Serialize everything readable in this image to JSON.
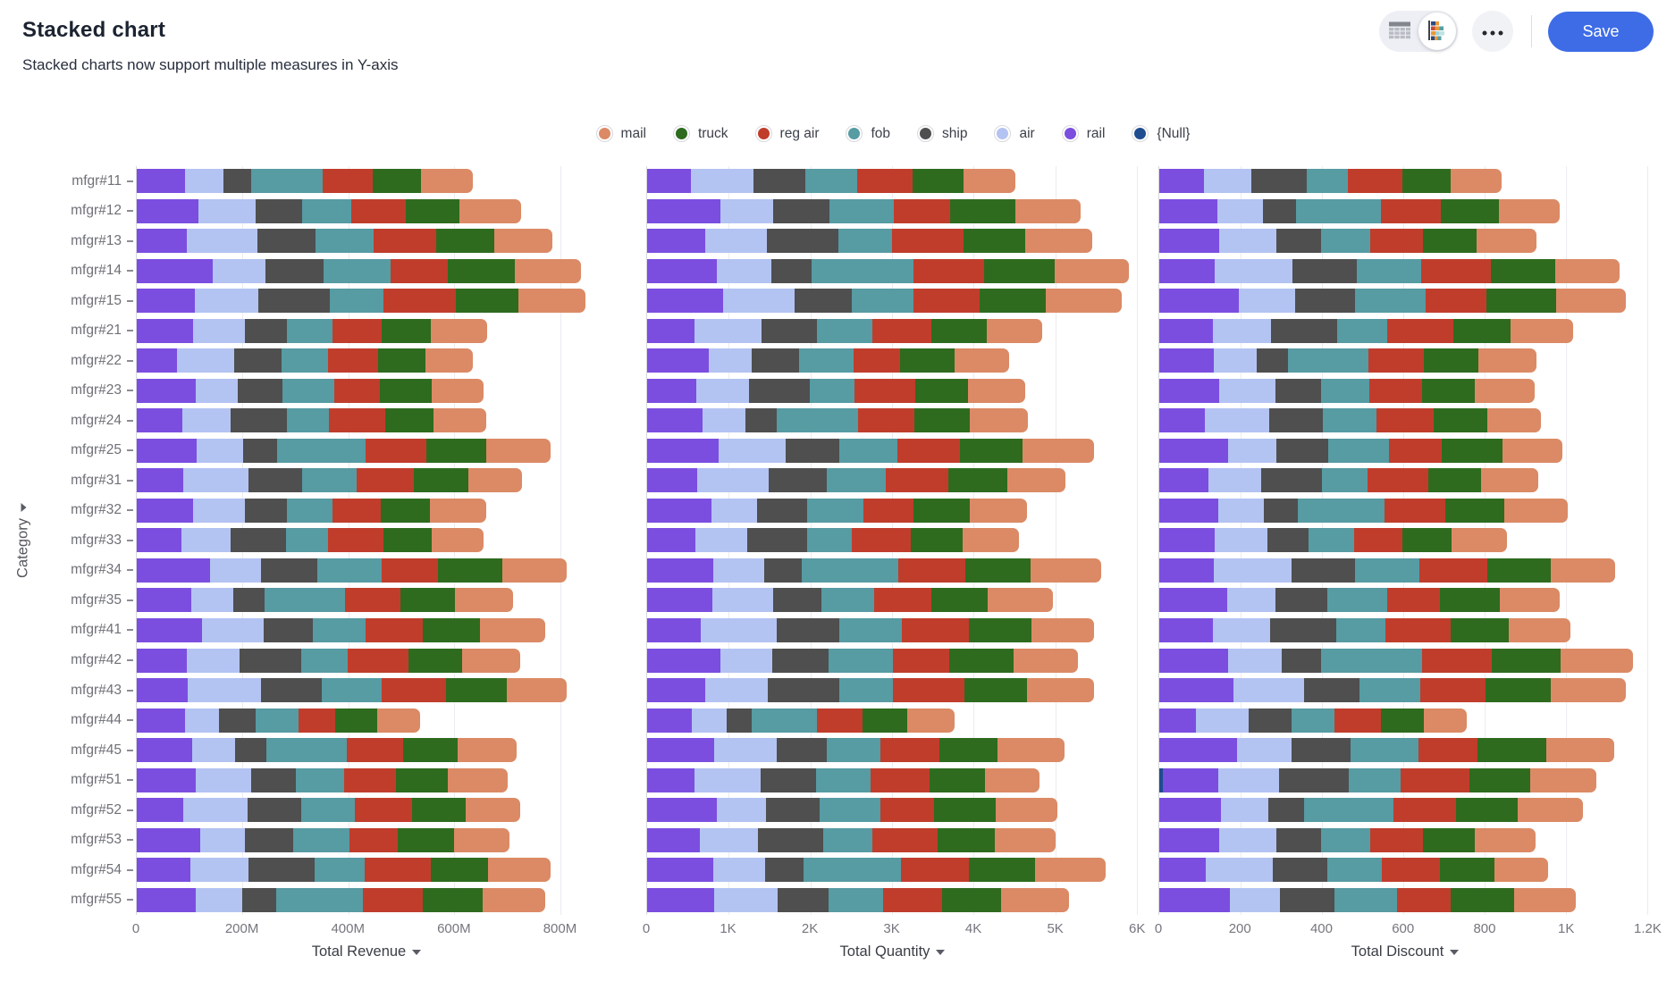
{
  "header": {
    "title": "Stacked chart",
    "subtitle": "Stacked charts now support multiple measures in Y-axis",
    "save_label": "Save"
  },
  "colors": {
    "accent_blue": "#3e6ce6",
    "mail": "#DB8A65",
    "truck": "#2E6B1F",
    "reg_air": "#C03D2C",
    "fob": "#579BA3",
    "ship": "#4F4F4F",
    "air": "#B3C3F2",
    "rail": "#7B4EE0",
    "null": "#1E4C8F"
  },
  "legend": {
    "items": [
      {
        "label": "mail",
        "color": "#DB8A65"
      },
      {
        "label": "truck",
        "color": "#2E6B1F"
      },
      {
        "label": "reg air",
        "color": "#C03D2C"
      },
      {
        "label": "fob",
        "color": "#579BA3"
      },
      {
        "label": "ship",
        "color": "#4F4F4F"
      },
      {
        "label": "air",
        "color": "#B3C3F2"
      },
      {
        "label": "rail",
        "color": "#7B4EE0"
      },
      {
        "label": "{Null}",
        "color": "#1E4C8F"
      }
    ]
  },
  "y_axis": {
    "label": "Category"
  },
  "chart_data": [
    {
      "type": "bar",
      "orientation": "horizontal",
      "stacked": true,
      "title": "Total Revenue",
      "unit": "M",
      "axis_max": 870,
      "grid": true,
      "ticks": [
        {
          "value": 0,
          "label": "0"
        },
        {
          "value": 200,
          "label": "200M"
        },
        {
          "value": 400,
          "label": "400M"
        },
        {
          "value": 600,
          "label": "600M"
        },
        {
          "value": 800,
          "label": "800M"
        }
      ],
      "categories": [
        "mfgr#11",
        "mfgr#12",
        "mfgr#13",
        "mfgr#14",
        "mfgr#15",
        "mfgr#21",
        "mfgr#22",
        "mfgr#23",
        "mfgr#24",
        "mfgr#25",
        "mfgr#31",
        "mfgr#32",
        "mfgr#33",
        "mfgr#34",
        "mfgr#35",
        "mfgr#41",
        "mfgr#42",
        "mfgr#43",
        "mfgr#44",
        "mfgr#45",
        "mfgr#51",
        "mfgr#52",
        "mfgr#53",
        "mfgr#54",
        "mfgr#55"
      ],
      "series": [
        {
          "name": "{Null}",
          "color": "#1E4C8F",
          "values": [
            0,
            0,
            0,
            0,
            0,
            0,
            0,
            0,
            0,
            0,
            0,
            0,
            0,
            0,
            0,
            0,
            0,
            0,
            0,
            0,
            0,
            0,
            0,
            0,
            0
          ]
        },
        {
          "name": "rail",
          "color": "#7B4EE0",
          "values": [
            92,
            116,
            94,
            143,
            110,
            106,
            76,
            112,
            86,
            113,
            87,
            106,
            85,
            138,
            103,
            124,
            94,
            97,
            91,
            104,
            112,
            87,
            120,
            102,
            112
          ]
        },
        {
          "name": "air",
          "color": "#B3C3F2",
          "values": [
            72,
            109,
            134,
            101,
            119,
            99,
            108,
            79,
            92,
            88,
            124,
            99,
            92,
            97,
            80,
            116,
            101,
            138,
            64,
            81,
            105,
            123,
            84,
            109,
            87
          ]
        },
        {
          "name": "ship",
          "color": "#4F4F4F",
          "values": [
            53,
            87,
            110,
            109,
            136,
            79,
            89,
            85,
            106,
            65,
            102,
            79,
            105,
            106,
            59,
            93,
            116,
            114,
            70,
            60,
            84,
            101,
            92,
            125,
            64
          ]
        },
        {
          "name": "fob",
          "color": "#579BA3",
          "values": [
            135,
            94,
            110,
            126,
            102,
            86,
            89,
            98,
            79,
            166,
            102,
            86,
            79,
            122,
            151,
            100,
            87,
            114,
            80,
            152,
            91,
            101,
            106,
            94,
            164
          ]
        },
        {
          "name": "reg air",
          "color": "#C03D2C",
          "values": [
            94,
            102,
            118,
            109,
            136,
            93,
            95,
            85,
            106,
            116,
            109,
            92,
            105,
            106,
            105,
            108,
            116,
            122,
            70,
            106,
            98,
            109,
            92,
            125,
            114
          ]
        },
        {
          "name": "truck",
          "color": "#2E6B1F",
          "values": [
            92,
            102,
            110,
            126,
            119,
            93,
            89,
            98,
            92,
            113,
            102,
            92,
            92,
            122,
            103,
            108,
            101,
            114,
            80,
            104,
            98,
            101,
            106,
            109,
            112
          ]
        },
        {
          "name": "mail",
          "color": "#DB8A65",
          "values": [
            98,
            116,
            110,
            126,
            126,
            106,
            90,
            99,
            99,
            121,
            102,
            106,
            98,
            121,
            111,
            123,
            109,
            113,
            81,
            111,
            114,
            102,
            104,
            118,
            119
          ]
        }
      ]
    },
    {
      "type": "bar",
      "orientation": "horizontal",
      "stacked": true,
      "title": "Total Quantity",
      "unit": "",
      "axis_max": 6020,
      "grid": true,
      "ticks": [
        {
          "value": 0,
          "label": "0"
        },
        {
          "value": 1000,
          "label": "1K"
        },
        {
          "value": 2000,
          "label": "2K"
        },
        {
          "value": 3000,
          "label": "3K"
        },
        {
          "value": 4000,
          "label": "4K"
        },
        {
          "value": 5000,
          "label": "5K"
        },
        {
          "value": 6000,
          "label": "6K"
        }
      ],
      "categories": [
        "mfgr#11",
        "mfgr#12",
        "mfgr#13",
        "mfgr#14",
        "mfgr#15",
        "mfgr#21",
        "mfgr#22",
        "mfgr#23",
        "mfgr#24",
        "mfgr#25",
        "mfgr#31",
        "mfgr#32",
        "mfgr#33",
        "mfgr#34",
        "mfgr#35",
        "mfgr#41",
        "mfgr#42",
        "mfgr#43",
        "mfgr#44",
        "mfgr#45",
        "mfgr#51",
        "mfgr#52",
        "mfgr#53",
        "mfgr#54",
        "mfgr#55"
      ],
      "series": [
        {
          "name": "{Null}",
          "color": "#1E4C8F",
          "values": [
            0,
            0,
            0,
            0,
            0,
            0,
            0,
            0,
            0,
            0,
            0,
            0,
            0,
            0,
            0,
            0,
            0,
            0,
            0,
            0,
            0,
            0,
            0,
            0,
            0
          ]
        },
        {
          "name": "rail",
          "color": "#7B4EE0",
          "values": [
            541,
            902,
            709,
            855,
            931,
            580,
            753,
            602,
            677,
            876,
            615,
            791,
            591,
            806,
            795,
            657,
            898,
            712,
            546,
            818,
            577,
            853,
            651,
            815,
            826
          ]
        },
        {
          "name": "air",
          "color": "#B3C3F2",
          "values": [
            767,
            637,
            763,
            666,
            873,
            822,
            532,
            648,
            527,
            822,
            871,
            558,
            637,
            628,
            745,
            931,
            634,
            767,
            425,
            767,
            818,
            602,
            701,
            635,
            774
          ]
        },
        {
          "name": "ship",
          "color": "#4F4F4F",
          "values": [
            631,
            690,
            872,
            489,
            698,
            677,
            576,
            740,
            387,
            657,
            717,
            605,
            728,
            461,
            596,
            767,
            687,
            876,
            313,
            613,
            673,
            653,
            801,
            467,
            620
          ]
        },
        {
          "name": "fob",
          "color": "#579BA3",
          "values": [
            631,
            796,
            654,
            1250,
            756,
            677,
            665,
            555,
            989,
            712,
            717,
            698,
            546,
            1178,
            646,
            767,
            792,
            657,
            798,
            664,
            673,
            753,
            601,
            1192,
            671
          ]
        },
        {
          "name": "reg air",
          "color": "#C03D2C",
          "values": [
            677,
            690,
            872,
            872,
            814,
            726,
            576,
            740,
            691,
            767,
            769,
            605,
            728,
            822,
            695,
            822,
            687,
            876,
            557,
            716,
            722,
            653,
            801,
            832,
            723
          ]
        },
        {
          "name": "truck",
          "color": "#2E6B1F",
          "values": [
            631,
            796,
            763,
            855,
            814,
            677,
            665,
            648,
            677,
            767,
            717,
            698,
            637,
            806,
            695,
            767,
            792,
            767,
            546,
            716,
            673,
            753,
            701,
            815,
            723
          ]
        },
        {
          "name": "mail",
          "color": "#DB8A65",
          "values": [
            632,
            796,
            818,
            908,
            931,
            678,
            664,
            694,
            719,
            876,
            718,
            699,
            682,
            855,
            795,
            766,
            791,
            822,
            580,
            817,
            674,
            753,
            751,
            865,
            826
          ]
        }
      ]
    },
    {
      "type": "bar",
      "orientation": "horizontal",
      "stacked": true,
      "title": "Total Discount",
      "unit": "",
      "axis_max": 1210,
      "grid": true,
      "ticks": [
        {
          "value": 0,
          "label": "0"
        },
        {
          "value": 200,
          "label": "200"
        },
        {
          "value": 400,
          "label": "400"
        },
        {
          "value": 600,
          "label": "600"
        },
        {
          "value": 800,
          "label": "800"
        },
        {
          "value": 1000,
          "label": "1K"
        },
        {
          "value": 1200,
          "label": "1.2K"
        }
      ],
      "categories": [
        "mfgr#11",
        "mfgr#12",
        "mfgr#13",
        "mfgr#14",
        "mfgr#15",
        "mfgr#21",
        "mfgr#22",
        "mfgr#23",
        "mfgr#24",
        "mfgr#25",
        "mfgr#31",
        "mfgr#32",
        "mfgr#33",
        "mfgr#34",
        "mfgr#35",
        "mfgr#41",
        "mfgr#42",
        "mfgr#43",
        "mfgr#44",
        "mfgr#45",
        "mfgr#51",
        "mfgr#52",
        "mfgr#53",
        "mfgr#54",
        "mfgr#55"
      ],
      "series": [
        {
          "name": "{Null}",
          "color": "#1E4C8F",
          "values": [
            0,
            0,
            0,
            0,
            0,
            0,
            0,
            0,
            0,
            0,
            0,
            0,
            0,
            0,
            0,
            0,
            0,
            0,
            0,
            0,
            8,
            0,
            0,
            0,
            0
          ]
        },
        {
          "name": "rail",
          "color": "#7B4EE0",
          "values": [
            109,
            143,
            148,
            136,
            195,
            132,
            134,
            148,
            112,
            168,
            121,
            145,
            137,
            134,
            167,
            131,
            169,
            183,
            91,
            190,
            138,
            151,
            148,
            115,
            174
          ]
        },
        {
          "name": "air",
          "color": "#B3C3F2",
          "values": [
            118,
            111,
            139,
            192,
            138,
            142,
            105,
            138,
            159,
            119,
            130,
            113,
            128,
            190,
            118,
            141,
            132,
            172,
            128,
            134,
            149,
            118,
            139,
            163,
            123
          ]
        },
        {
          "name": "ship",
          "color": "#4F4F4F",
          "values": [
            135,
            82,
            111,
            158,
            149,
            163,
            77,
            111,
            131,
            129,
            149,
            83,
            102,
            157,
            128,
            162,
            97,
            138,
            106,
            145,
            170,
            86,
            111,
            134,
            133
          ]
        },
        {
          "name": "fob",
          "color": "#579BA3",
          "values": [
            101,
            209,
            121,
            158,
            172,
            122,
            197,
            120,
            131,
            149,
            112,
            213,
            111,
            157,
            148,
            121,
            247,
            149,
            106,
            168,
            128,
            221,
            120,
            134,
            154
          ]
        },
        {
          "name": "reg air",
          "color": "#C03D2C",
          "values": [
            135,
            146,
            130,
            170,
            149,
            163,
            137,
            129,
            141,
            129,
            149,
            148,
            120,
            168,
            128,
            162,
            172,
            160,
            113,
            145,
            170,
            154,
            129,
            143,
            133
          ]
        },
        {
          "name": "truck",
          "color": "#2E6B1F",
          "values": [
            118,
            143,
            130,
            158,
            172,
            142,
            134,
            129,
            131,
            149,
            130,
            145,
            120,
            157,
            148,
            141,
            169,
            160,
            106,
            168,
            149,
            151,
            129,
            134,
            154
          ]
        },
        {
          "name": "mail",
          "color": "#DB8A65",
          "values": [
            125,
            150,
            148,
            159,
            171,
            152,
            143,
            147,
            132,
            147,
            141,
            156,
            136,
            157,
            147,
            152,
            179,
            184,
            105,
            168,
            161,
            161,
            148,
            133,
            153
          ]
        }
      ]
    }
  ]
}
